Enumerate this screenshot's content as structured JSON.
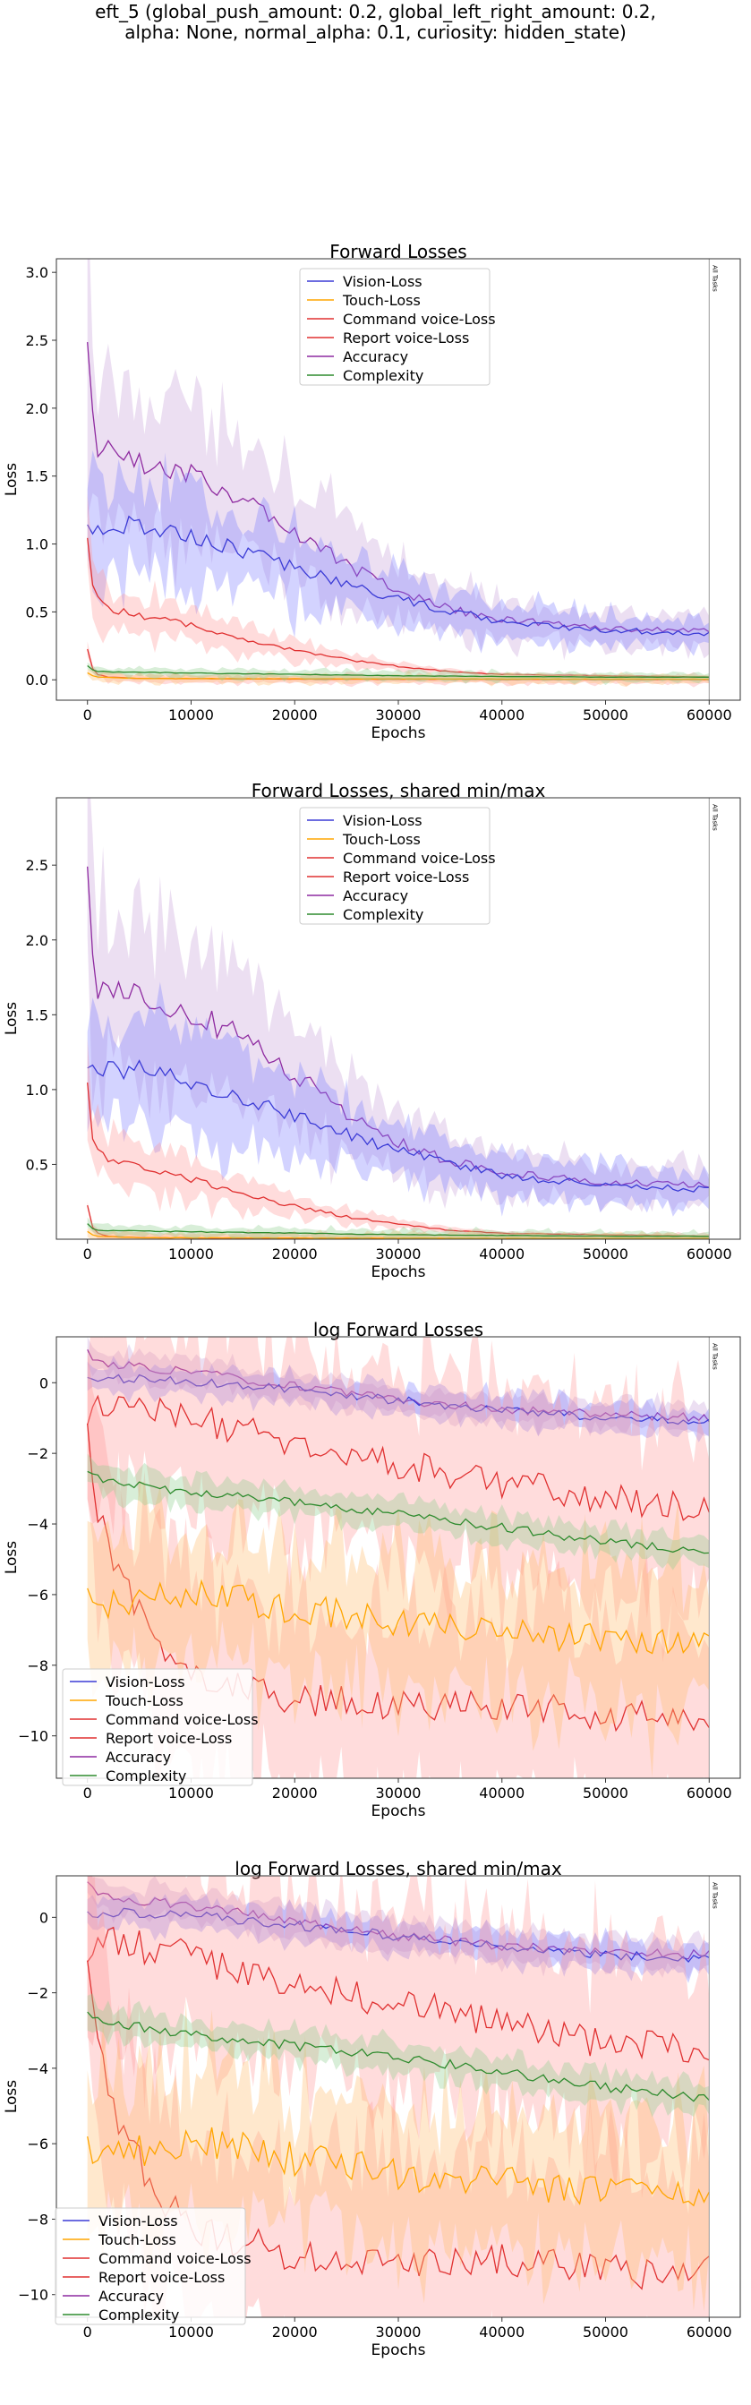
{
  "suptitle": {
    "line1": "eft_5 (global_push_amount: 0.2, global_left_right_amount: 0.2,",
    "line2": "alpha: None, normal_alpha: 0.1, curiosity: hidden_state)"
  },
  "colors": {
    "Vision-Loss": "#3b3bd6",
    "Touch-Loss": "#ffa500",
    "Command voice-Loss": "#e03030",
    "Report voice-Loss": "#e03030",
    "Accuracy": "#8e2aa0",
    "Complexity": "#2e8b2e",
    "band_vision": "#8080ff",
    "band_touch": "#ffbe70",
    "band_red": "#ff9a9a",
    "band_acc": "#c9a3d9",
    "band_comp": "#8fcf8f"
  },
  "chart_data": [
    {
      "type": "line",
      "title": "Forward Losses",
      "xlabel": "Epochs",
      "ylabel": "Loss",
      "xlim": [
        -3000,
        63000
      ],
      "ylim": [
        -0.15,
        3.1
      ],
      "xticks": [
        0,
        10000,
        20000,
        30000,
        40000,
        50000,
        60000
      ],
      "yticks": [
        0.0,
        0.5,
        1.0,
        1.5,
        2.0,
        2.5,
        3.0
      ],
      "ytick_labels": [
        "0.0",
        "0.5",
        "1.0",
        "1.5",
        "2.0",
        "2.5",
        "3.0"
      ],
      "vline": {
        "x": 60000,
        "label": "All Tasks"
      },
      "legend_position": "upper center",
      "grid": false,
      "series": [
        {
          "name": "Vision-Loss",
          "x": [
            0,
            2500,
            5000,
            7500,
            10000,
            15000,
            20000,
            25000,
            30000,
            35000,
            40000,
            45000,
            50000,
            55000,
            60000
          ],
          "y": [
            1.12,
            1.12,
            1.15,
            1.1,
            1.05,
            0.95,
            0.82,
            0.7,
            0.6,
            0.5,
            0.43,
            0.39,
            0.37,
            0.35,
            0.33
          ]
        },
        {
          "name": "Touch-Loss",
          "x": [
            0,
            500,
            1000,
            5000,
            20000,
            40000,
            60000
          ],
          "y": [
            0.05,
            0.03,
            0.02,
            0.01,
            0.008,
            0.006,
            0.005
          ]
        },
        {
          "name": "Command voice-Loss",
          "x": [
            0,
            500,
            1000,
            2000,
            5000,
            10000,
            15000,
            20000,
            25000,
            30000,
            35000,
            40000,
            50000,
            60000
          ],
          "y": [
            1.02,
            0.7,
            0.58,
            0.52,
            0.48,
            0.4,
            0.3,
            0.22,
            0.15,
            0.1,
            0.06,
            0.04,
            0.03,
            0.02
          ]
        },
        {
          "name": "Report voice-Loss",
          "x": [
            0,
            500,
            1000,
            2000,
            5000,
            20000,
            40000,
            60000
          ],
          "y": [
            0.22,
            0.08,
            0.04,
            0.02,
            0.01,
            0.005,
            0.003,
            0.002
          ]
        },
        {
          "name": "Accuracy",
          "x": [
            0,
            500,
            1000,
            2500,
            5000,
            7500,
            10000,
            15000,
            20000,
            25000,
            30000,
            35000,
            40000,
            45000,
            50000,
            55000,
            60000
          ],
          "y": [
            2.45,
            1.9,
            1.7,
            1.68,
            1.62,
            1.58,
            1.5,
            1.35,
            1.1,
            0.85,
            0.65,
            0.52,
            0.45,
            0.41,
            0.38,
            0.37,
            0.36
          ]
        },
        {
          "name": "Complexity",
          "x": [
            0,
            500,
            1000,
            5000,
            10000,
            20000,
            30000,
            40000,
            50000,
            60000
          ],
          "y": [
            0.1,
            0.07,
            0.06,
            0.055,
            0.05,
            0.04,
            0.03,
            0.025,
            0.02,
            0.02
          ]
        }
      ]
    },
    {
      "type": "line",
      "title": "Forward Losses, shared min/max",
      "xlabel": "Epochs",
      "ylabel": "Loss",
      "xlim": [
        -3000,
        63000
      ],
      "ylim": [
        0.0,
        2.95
      ],
      "xticks": [
        0,
        10000,
        20000,
        30000,
        40000,
        50000,
        60000
      ],
      "yticks": [
        0.5,
        1.0,
        1.5,
        2.0,
        2.5
      ],
      "ytick_labels": [
        "0.5",
        "1.0",
        "1.5",
        "2.0",
        "2.5"
      ],
      "vline": {
        "x": 60000,
        "label": "All Tasks"
      },
      "legend_position": "upper center",
      "grid": false,
      "series": [
        {
          "name": "Vision-Loss",
          "x": [
            0,
            2500,
            5000,
            7500,
            10000,
            15000,
            20000,
            25000,
            30000,
            35000,
            40000,
            45000,
            50000,
            55000,
            60000
          ],
          "y": [
            1.12,
            1.12,
            1.15,
            1.1,
            1.05,
            0.95,
            0.82,
            0.7,
            0.6,
            0.5,
            0.43,
            0.39,
            0.37,
            0.35,
            0.33
          ]
        },
        {
          "name": "Touch-Loss",
          "x": [
            0,
            500,
            1000,
            5000,
            20000,
            40000,
            60000
          ],
          "y": [
            0.05,
            0.03,
            0.02,
            0.01,
            0.008,
            0.006,
            0.005
          ]
        },
        {
          "name": "Command voice-Loss",
          "x": [
            0,
            500,
            1000,
            2000,
            5000,
            10000,
            15000,
            20000,
            25000,
            30000,
            35000,
            40000,
            50000,
            60000
          ],
          "y": [
            1.02,
            0.7,
            0.58,
            0.52,
            0.48,
            0.4,
            0.3,
            0.22,
            0.15,
            0.1,
            0.06,
            0.04,
            0.03,
            0.02
          ]
        },
        {
          "name": "Report voice-Loss",
          "x": [
            0,
            500,
            1000,
            2000,
            5000,
            20000,
            40000,
            60000
          ],
          "y": [
            0.22,
            0.08,
            0.04,
            0.02,
            0.01,
            0.005,
            0.003,
            0.002
          ]
        },
        {
          "name": "Accuracy",
          "x": [
            0,
            500,
            1000,
            2500,
            5000,
            7500,
            10000,
            15000,
            20000,
            25000,
            30000,
            35000,
            40000,
            45000,
            50000,
            55000,
            60000
          ],
          "y": [
            2.45,
            1.9,
            1.7,
            1.68,
            1.62,
            1.58,
            1.5,
            1.35,
            1.1,
            0.85,
            0.65,
            0.52,
            0.45,
            0.41,
            0.38,
            0.37,
            0.36
          ]
        },
        {
          "name": "Complexity",
          "x": [
            0,
            500,
            1000,
            5000,
            10000,
            20000,
            30000,
            40000,
            50000,
            60000
          ],
          "y": [
            0.1,
            0.07,
            0.06,
            0.055,
            0.05,
            0.04,
            0.03,
            0.025,
            0.02,
            0.02
          ]
        }
      ]
    },
    {
      "type": "line",
      "title": "log Forward Losses",
      "xlabel": "Epochs",
      "ylabel": "Loss",
      "xlim": [
        -3000,
        63000
      ],
      "ylim": [
        -11.2,
        1.3
      ],
      "xticks": [
        0,
        10000,
        20000,
        30000,
        40000,
        50000,
        60000
      ],
      "yticks": [
        0,
        -2,
        -4,
        -6,
        -8,
        -10
      ],
      "ytick_labels": [
        "0",
        "−2",
        "−4",
        "−6",
        "−8",
        "−10"
      ],
      "vline": {
        "x": 60000,
        "label": "All Tasks"
      },
      "legend_position": "lower left",
      "grid": false,
      "series": [
        {
          "name": "Vision-Loss",
          "x": [
            0,
            5000,
            10000,
            20000,
            30000,
            40000,
            50000,
            60000
          ],
          "y": [
            0.1,
            0.12,
            0.05,
            -0.2,
            -0.5,
            -0.8,
            -0.98,
            -1.1
          ]
        },
        {
          "name": "Touch-Loss",
          "x": [
            0,
            2500,
            5000,
            10000,
            20000,
            30000,
            40000,
            50000,
            60000
          ],
          "y": [
            -6.1,
            -6.3,
            -6.2,
            -5.9,
            -6.4,
            -6.8,
            -7.0,
            -7.3,
            -7.4
          ]
        },
        {
          "name": "Command voice-Loss",
          "x": [
            0,
            1000,
            2500,
            5000,
            10000,
            15000,
            20000,
            30000,
            40000,
            50000,
            60000
          ],
          "y": [
            -1.4,
            -0.5,
            -0.65,
            -0.8,
            -1.0,
            -1.4,
            -1.7,
            -2.3,
            -2.8,
            -3.3,
            -3.6
          ]
        },
        {
          "name": "Report voice-Loss",
          "x": [
            0,
            1000,
            2500,
            5000,
            7500,
            10000,
            15000,
            20000,
            25000,
            30000,
            40000,
            50000,
            60000
          ],
          "y": [
            -1.4,
            -3.5,
            -5.0,
            -6.5,
            -7.5,
            -8.2,
            -8.6,
            -9.0,
            -9.0,
            -9.2,
            -9.1,
            -9.4,
            -9.4
          ]
        },
        {
          "name": "Accuracy",
          "x": [
            0,
            1000,
            5000,
            10000,
            20000,
            30000,
            40000,
            50000,
            60000
          ],
          "y": [
            0.9,
            0.55,
            0.45,
            0.3,
            -0.1,
            -0.5,
            -0.75,
            -0.9,
            -1.0
          ]
        },
        {
          "name": "Complexity",
          "x": [
            0,
            2500,
            5000,
            10000,
            20000,
            30000,
            40000,
            50000,
            60000
          ],
          "y": [
            -2.6,
            -2.8,
            -2.9,
            -3.1,
            -3.4,
            -3.7,
            -4.1,
            -4.5,
            -4.8
          ]
        }
      ]
    },
    {
      "type": "line",
      "title": "log Forward Losses, shared min/max",
      "xlabel": "Epochs",
      "ylabel": "Loss",
      "xlim": [
        -3000,
        63000
      ],
      "ylim": [
        -10.6,
        1.1
      ],
      "xticks": [
        0,
        10000,
        20000,
        30000,
        40000,
        50000,
        60000
      ],
      "yticks": [
        0,
        -2,
        -4,
        -6,
        -8,
        -10
      ],
      "ytick_labels": [
        "0",
        "−2",
        "−4",
        "−6",
        "−8",
        "−10"
      ],
      "vline": {
        "x": 60000,
        "label": "All Tasks"
      },
      "legend_position": "lower left",
      "grid": false,
      "series": [
        {
          "name": "Vision-Loss",
          "x": [
            0,
            5000,
            10000,
            20000,
            30000,
            40000,
            50000,
            60000
          ],
          "y": [
            0.1,
            0.12,
            0.05,
            -0.2,
            -0.5,
            -0.8,
            -0.98,
            -1.1
          ]
        },
        {
          "name": "Touch-Loss",
          "x": [
            0,
            2500,
            5000,
            10000,
            20000,
            30000,
            40000,
            50000,
            60000
          ],
          "y": [
            -6.1,
            -6.3,
            -6.2,
            -5.9,
            -6.4,
            -6.8,
            -7.0,
            -7.3,
            -7.4
          ]
        },
        {
          "name": "Command voice-Loss",
          "x": [
            0,
            1000,
            2500,
            5000,
            10000,
            15000,
            20000,
            30000,
            40000,
            50000,
            60000
          ],
          "y": [
            -1.4,
            -0.5,
            -0.65,
            -0.8,
            -1.0,
            -1.4,
            -1.7,
            -2.3,
            -2.8,
            -3.3,
            -3.6
          ]
        },
        {
          "name": "Report voice-Loss",
          "x": [
            0,
            1000,
            2500,
            5000,
            7500,
            10000,
            15000,
            20000,
            25000,
            30000,
            40000,
            50000,
            60000
          ],
          "y": [
            -1.4,
            -3.5,
            -5.0,
            -6.5,
            -7.5,
            -8.2,
            -8.6,
            -9.0,
            -9.0,
            -9.2,
            -9.1,
            -9.4,
            -9.4
          ]
        },
        {
          "name": "Accuracy",
          "x": [
            0,
            1000,
            5000,
            10000,
            20000,
            30000,
            40000,
            50000,
            60000
          ],
          "y": [
            0.9,
            0.55,
            0.45,
            0.3,
            -0.1,
            -0.5,
            -0.75,
            -0.9,
            -1.0
          ]
        },
        {
          "name": "Complexity",
          "x": [
            0,
            2500,
            5000,
            10000,
            20000,
            30000,
            40000,
            50000,
            60000
          ],
          "y": [
            -2.6,
            -2.8,
            -2.9,
            -3.1,
            -3.4,
            -3.7,
            -4.1,
            -4.5,
            -4.8
          ]
        }
      ]
    }
  ]
}
